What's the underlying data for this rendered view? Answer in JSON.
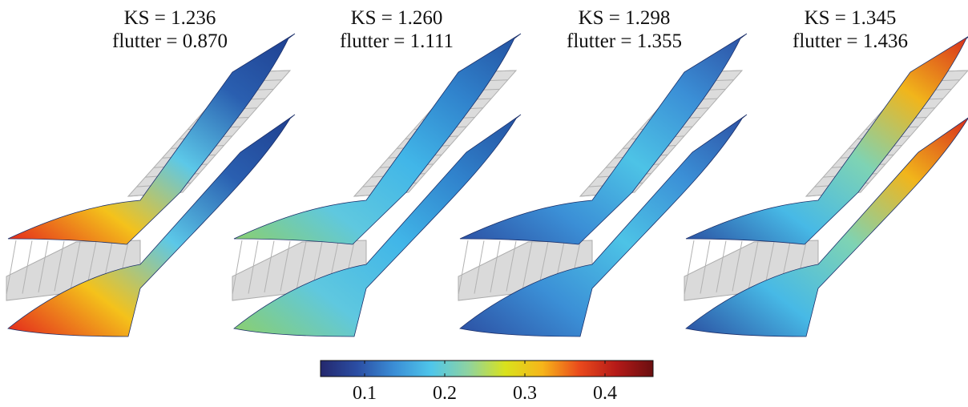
{
  "panels": [
    {
      "ks_label": "KS = 1.236",
      "flutter_label": "flutter = 0.870",
      "color_stops": [
        "#e3241c",
        "#f4c21b",
        "#5cc8e8",
        "#2a5fb0",
        "#1f3f8f"
      ]
    },
    {
      "ks_label": "KS = 1.260",
      "flutter_label": "flutter = 1.111",
      "color_stops": [
        "#8ccf6a",
        "#5fc8df",
        "#41b6e8",
        "#3082cc",
        "#24509f"
      ]
    },
    {
      "ks_label": "KS = 1.298",
      "flutter_label": "flutter = 1.355",
      "color_stops": [
        "#2c4fa2",
        "#3b8fd6",
        "#4dc3e6",
        "#3b8fd6",
        "#2c4fa2"
      ]
    },
    {
      "ks_label": "KS = 1.345",
      "flutter_label": "flutter = 1.436",
      "color_stops": [
        "#2a4ea0",
        "#47b9e6",
        "#7ed3b4",
        "#f1b51b",
        "#d7261c"
      ]
    }
  ],
  "colorbar": {
    "ticks": [
      "0.1",
      "0.2",
      "0.3",
      "0.4"
    ],
    "tick_values": [
      0.1,
      0.2,
      0.3,
      0.4
    ],
    "range": [
      0.045,
      0.46
    ],
    "colormap": [
      "#24286d",
      "#2b4ea4",
      "#3b8ed6",
      "#4fc6ea",
      "#8ed3a0",
      "#d9e21c",
      "#f6b51a",
      "#ea4a1c",
      "#b51a18",
      "#6a0f10"
    ]
  }
}
